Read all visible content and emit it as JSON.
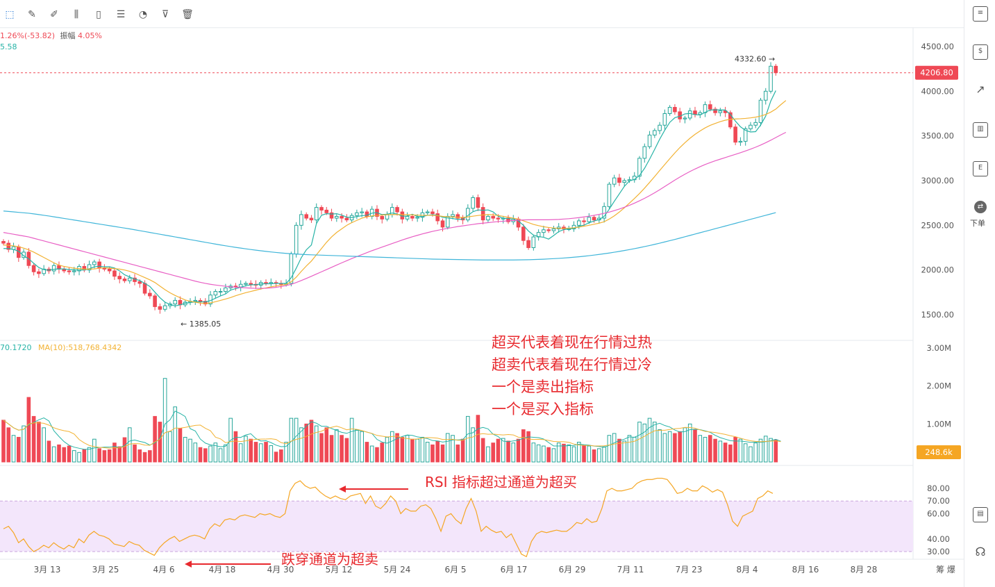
{
  "toolbar": {
    "tools": [
      {
        "name": "cursor-tool",
        "glyph": "⬚"
      },
      {
        "name": "pencil-tool",
        "glyph": "✎"
      },
      {
        "name": "brush-tool",
        "glyph": "✐"
      },
      {
        "name": "candle-tool",
        "glyph": "⫼"
      },
      {
        "name": "clip-tool",
        "glyph": "▯"
      },
      {
        "name": "note-tool",
        "glyph": "☰"
      },
      {
        "name": "magnet-tool",
        "glyph": "◔"
      },
      {
        "name": "filter-tool",
        "glyph": "⊽"
      },
      {
        "name": "trash-tool",
        "glyph": "🗑"
      }
    ]
  },
  "info": {
    "change": "1.26%(-53.82)",
    "amplitude_label": "振幅",
    "amplitude_value": "4.05%",
    "ma_line": "5.58",
    "vol_ma5": "70.1720",
    "vol_ma10": "MA(10):518,768.4342"
  },
  "price_axis": {
    "ticks": [
      "4500.00",
      "4000.00",
      "3500.00",
      "3000.00",
      "2500.00",
      "2000.00",
      "1500.00"
    ],
    "current_price": "4206.80",
    "high_label": "4332.60",
    "low_label": "1385.05"
  },
  "volume_axis": {
    "ticks": [
      "3.00M",
      "2.00M",
      "1.00M"
    ],
    "current": "248.6k"
  },
  "rsi_axis": {
    "ticks": [
      "80.00",
      "70.00",
      "60.00",
      "40.00",
      "30.00"
    ]
  },
  "x_axis": {
    "ticks": [
      "3月 13",
      "3月 25",
      "4月 6",
      "4月 18",
      "4月 30",
      "5月 12",
      "5月 24",
      "6月 5",
      "6月 17",
      "6月 29",
      "7月 11",
      "7月 23",
      "8月 4",
      "8月 16",
      "8月 28"
    ],
    "corner": "筹 爆"
  },
  "notes": {
    "line1": "超买代表着现在行情过热",
    "line2": "超卖代表着现在行情过冷",
    "line3": "一个是卖出指标",
    "line4": "一个是买入指标",
    "rsi_over": "RSI 指标超过通道为超买",
    "rsi_under": "跌穿通道为超卖"
  },
  "right_panel": {
    "order_label": "下单"
  },
  "colors": {
    "up": "#26a69a",
    "down": "#ef4955",
    "ma5": "#26b3a6",
    "ma10": "#f2b233",
    "ma20": "#e85ec4",
    "ma30": "#3fb5d9",
    "rsi": "#f5a623",
    "rsi_band": "#f3e6fb"
  },
  "chart_data": {
    "type": "candlestick",
    "price_range": [
      1300,
      4600
    ],
    "volume_range": [
      0,
      3000000
    ],
    "rsi_range": [
      20,
      95
    ],
    "rsi_band": [
      30,
      70
    ],
    "closes": [
      2300,
      2230,
      2260,
      2140,
      2200,
      2050,
      1980,
      1960,
      2010,
      1990,
      2050,
      2010,
      1990,
      1980,
      1990,
      2040,
      2000,
      2060,
      2090,
      2020,
      2010,
      1990,
      1930,
      1900,
      1880,
      1910,
      1870,
      1850,
      1740,
      1710,
      1590,
      1560,
      1600,
      1620,
      1660,
      1610,
      1640,
      1650,
      1660,
      1650,
      1620,
      1720,
      1760,
      1760,
      1800,
      1820,
      1810,
      1840,
      1850,
      1840,
      1830,
      1860,
      1850,
      1860,
      1850,
      1840,
      1850,
      2180,
      2500,
      2620,
      2580,
      2560,
      2700,
      2670,
      2640,
      2580,
      2600,
      2580,
      2560,
      2610,
      2640,
      2650,
      2600,
      2680,
      2600,
      2570,
      2620,
      2700,
      2650,
      2570,
      2600,
      2580,
      2590,
      2640,
      2650,
      2630,
      2550,
      2480,
      2600,
      2620,
      2580,
      2560,
      2690,
      2810,
      2700,
      2560,
      2600,
      2580,
      2570,
      2580,
      2540,
      2570,
      2480,
      2330,
      2250,
      2370,
      2420,
      2450,
      2440,
      2460,
      2480,
      2460,
      2460,
      2500,
      2550,
      2540,
      2590,
      2560,
      2580,
      2710,
      2960,
      3030,
      2980,
      3000,
      3010,
      3050,
      3250,
      3380,
      3510,
      3560,
      3620,
      3750,
      3820,
      3770,
      3690,
      3700,
      3780,
      3740,
      3760,
      3850,
      3800,
      3760,
      3780,
      3760,
      3600,
      3430,
      3440,
      3580,
      3620,
      3650,
      3900,
      4000,
      4280,
      4207
    ],
    "volume": [
      1100000,
      900000,
      700000,
      650000,
      950000,
      1700000,
      1200000,
      1050000,
      900000,
      550000,
      400000,
      450000,
      380000,
      420000,
      300000,
      250000,
      320000,
      380000,
      600000,
      350000,
      300000,
      320000,
      500000,
      400000,
      640000,
      900000,
      450000,
      320000,
      250000,
      300000,
      1200000,
      1050000,
      2200000,
      800000,
      1450000,
      880000,
      650000,
      600000,
      500000,
      380000,
      350000,
      420000,
      500000,
      350000,
      450000,
      1150000,
      800000,
      480000,
      680000,
      600000,
      520000,
      480000,
      520000,
      430000,
      260000,
      320000,
      520000,
      1150000,
      1150000,
      900000,
      1000000,
      1100000,
      950000,
      750000,
      900000,
      700000,
      850000,
      700000,
      620000,
      1150000,
      850000,
      800000,
      520000,
      420000,
      380000,
      500000,
      650000,
      800000,
      750000,
      650000,
      700000,
      600000,
      600000,
      650000,
      520000,
      450000,
      550000,
      450000,
      750000,
      700000,
      450000,
      600000,
      1200000,
      900000,
      1230000,
      620000,
      400000,
      500000,
      600000,
      620000,
      550000,
      500000,
      600000,
      850000,
      800000,
      500000,
      450000,
      420000,
      380000,
      350000,
      500000,
      470000,
      450000,
      400000,
      520000,
      430000,
      420000,
      320000,
      350000,
      400000,
      700000,
      750000,
      600000,
      550000,
      700000,
      650000,
      1050000,
      1000000,
      1150000,
      1050000,
      850000,
      750000,
      800000,
      750000,
      800000,
      900000,
      1000000,
      850000,
      700000,
      650000,
      700000,
      600000,
      550000,
      500000,
      450000,
      650000,
      600000,
      480000,
      400000,
      500000,
      600000,
      680000,
      620000,
      580000,
      248600
    ],
    "rsi": [
      48,
      50,
      45,
      37,
      40,
      34,
      30,
      32,
      35,
      33,
      37,
      34,
      32,
      35,
      33,
      40,
      37,
      43,
      46,
      43,
      42,
      40,
      36,
      35,
      34,
      38,
      36,
      35,
      31,
      29,
      27,
      33,
      37,
      40,
      42,
      38,
      40,
      42,
      43,
      42,
      40,
      48,
      52,
      50,
      55,
      56,
      55,
      58,
      59,
      58,
      57,
      60,
      59,
      60,
      58,
      57,
      60,
      78,
      84,
      86,
      82,
      80,
      81,
      77,
      74,
      72,
      74,
      72,
      71,
      74,
      75,
      76,
      68,
      74,
      66,
      64,
      68,
      74,
      70,
      60,
      64,
      62,
      62,
      66,
      67,
      64,
      56,
      46,
      58,
      60,
      55,
      52,
      64,
      72,
      62,
      46,
      50,
      47,
      45,
      46,
      41,
      44,
      36,
      28,
      26,
      38,
      44,
      46,
      45,
      46,
      47,
      46,
      46,
      49,
      53,
      52,
      56,
      53,
      54,
      64,
      78,
      80,
      78,
      78,
      79,
      80,
      84,
      86,
      87,
      87,
      88,
      88,
      87,
      82,
      76,
      77,
      80,
      78,
      78,
      82,
      80,
      77,
      79,
      77,
      67,
      54,
      50,
      58,
      60,
      62,
      72,
      74,
      78,
      76
    ],
    "ma5": [
      2240,
      2240,
      2230,
      2210,
      2160,
      2125,
      2075,
      2028,
      2004,
      1998,
      2008,
      2012,
      2012,
      2006,
      2002,
      2000,
      2000,
      2014,
      2036,
      2042,
      2036,
      2036,
      2022,
      1990,
      1946,
      1922,
      1898,
      1882,
      1850,
      1816,
      1752,
      1690,
      1640,
      1614,
      1598,
      1610,
      1628,
      1636,
      1644,
      1644,
      1644,
      1658,
      1684,
      1710,
      1732,
      1776,
      1792,
      1806,
      1824,
      1834,
      1836,
      1844,
      1846,
      1846,
      1850,
      1850,
      1850,
      1914,
      2020,
      2138,
      2226,
      2280,
      2520,
      2612,
      2630,
      2626,
      2630,
      2614,
      2592,
      2586,
      2598,
      2608,
      2612,
      2636,
      2642,
      2620,
      2624,
      2638,
      2626,
      2602,
      2604,
      2624,
      2598,
      2598,
      2612,
      2618,
      2612,
      2590,
      2582,
      2576,
      2566,
      2568,
      2610,
      2652,
      2672,
      2668,
      2672,
      2650,
      2602,
      2578,
      2576,
      2568,
      2550,
      2500,
      2436,
      2390,
      2374,
      2366,
      2346,
      2386,
      2430,
      2452,
      2460,
      2464,
      2490,
      2502,
      2528,
      2548,
      2564,
      2600,
      2680,
      2768,
      2852,
      2936,
      2996,
      3014,
      3058,
      3138,
      3240,
      3350,
      3464,
      3564,
      3652,
      3704,
      3720,
      3746,
      3752,
      3738,
      3734,
      3764,
      3790,
      3792,
      3792,
      3790,
      3740,
      3666,
      3602,
      3562,
      3544,
      3548,
      3622,
      3722,
      3890,
      4007
    ],
    "ma10": [
      2280,
      2275,
      2270,
      2260,
      2245,
      2225,
      2200,
      2170,
      2140,
      2110,
      2080,
      2055,
      2040,
      2030,
      2020,
      2015,
      2010,
      2010,
      2012,
      2020,
      2025,
      2020,
      2015,
      2010,
      2000,
      1985,
      1965,
      1940,
      1915,
      1890,
      1860,
      1820,
      1780,
      1745,
      1715,
      1690,
      1665,
      1650,
      1640,
      1630,
      1625,
      1632,
      1645,
      1660,
      1675,
      1692,
      1712,
      1730,
      1746,
      1760,
      1774,
      1788,
      1800,
      1812,
      1822,
      1830,
      1838,
      1868,
      1920,
      1985,
      2045,
      2100,
      2170,
      2240,
      2310,
      2370,
      2420,
      2460,
      2500,
      2530,
      2555,
      2580,
      2595,
      2605,
      2612,
      2615,
      2618,
      2620,
      2620,
      2620,
      2618,
      2616,
      2614,
      2612,
      2612,
      2612,
      2608,
      2600,
      2596,
      2594,
      2590,
      2588,
      2594,
      2602,
      2610,
      2616,
      2620,
      2616,
      2610,
      2600,
      2590,
      2580,
      2570,
      2550,
      2530,
      2510,
      2496,
      2484,
      2476,
      2470,
      2466,
      2466,
      2468,
      2472,
      2480,
      2490,
      2500,
      2512,
      2524,
      2540,
      2570,
      2606,
      2648,
      2696,
      2748,
      2800,
      2856,
      2916,
      2980,
      3046,
      3114,
      3180,
      3246,
      3310,
      3370,
      3424,
      3474,
      3518,
      3556,
      3590,
      3618,
      3640,
      3660,
      3676,
      3686,
      3690,
      3692,
      3696,
      3702,
      3710,
      3722,
      3740,
      3766,
      3800,
      3850,
      3896
    ],
    "ma20": [
      2420,
      2410,
      2400,
      2390,
      2380,
      2370,
      2355,
      2340,
      2325,
      2310,
      2295,
      2280,
      2265,
      2250,
      2235,
      2220,
      2205,
      2190,
      2175,
      2160,
      2145,
      2130,
      2115,
      2100,
      2085,
      2070,
      2055,
      2040,
      2025,
      2010,
      1995,
      1980,
      1965,
      1950,
      1935,
      1920,
      1905,
      1890,
      1875,
      1862,
      1850,
      1840,
      1832,
      1825,
      1818,
      1812,
      1808,
      1804,
      1800,
      1797,
      1795,
      1795,
      1796,
      1800,
      1806,
      1815,
      1826,
      1840,
      1860,
      1882,
      1906,
      1930,
      1955,
      1980,
      2005,
      2030,
      2055,
      2080,
      2104,
      2128,
      2150,
      2172,
      2194,
      2216,
      2236,
      2256,
      2276,
      2296,
      2316,
      2336,
      2354,
      2372,
      2388,
      2404,
      2418,
      2432,
      2444,
      2456,
      2466,
      2476,
      2486,
      2494,
      2502,
      2510,
      2518,
      2524,
      2530,
      2536,
      2542,
      2546,
      2550,
      2554,
      2558,
      2560,
      2562,
      2562,
      2562,
      2562,
      2562,
      2564,
      2566,
      2570,
      2574,
      2580,
      2586,
      2594,
      2602,
      2612,
      2622,
      2634,
      2648,
      2664,
      2682,
      2702,
      2724,
      2748,
      2774,
      2802,
      2832,
      2864,
      2898,
      2934,
      2970,
      3006,
      3040,
      3072,
      3102,
      3130,
      3156,
      3180,
      3202,
      3222,
      3240,
      3258,
      3276,
      3294,
      3312,
      3332,
      3352,
      3374,
      3398,
      3424,
      3452,
      3482,
      3512,
      3540
    ],
    "ma30": [
      2660,
      2655,
      2650,
      2645,
      2640,
      2635,
      2628,
      2620,
      2612,
      2604,
      2595,
      2586,
      2577,
      2568,
      2559,
      2550,
      2541,
      2532,
      2523,
      2514,
      2505,
      2496,
      2487,
      2478,
      2469,
      2460,
      2450,
      2440,
      2430,
      2420,
      2410,
      2400,
      2390,
      2380,
      2370,
      2360,
      2350,
      2340,
      2330,
      2320,
      2310,
      2300,
      2290,
      2280,
      2271,
      2262,
      2253,
      2245,
      2237,
      2229,
      2222,
      2215,
      2208,
      2202,
      2196,
      2191,
      2186,
      2182,
      2178,
      2175,
      2172,
      2170,
      2168,
      2166,
      2164,
      2162,
      2160,
      2158,
      2156,
      2154,
      2152,
      2150,
      2148,
      2146,
      2144,
      2142,
      2140,
      2138,
      2136,
      2134,
      2132,
      2130,
      2128,
      2126,
      2124,
      2122,
      2121,
      2120,
      2119,
      2118,
      2117,
      2116,
      2115,
      2114,
      2113,
      2112,
      2112,
      2112,
      2112,
      2112,
      2112,
      2112,
      2113,
      2114,
      2115,
      2117,
      2119,
      2121,
      2124,
      2127,
      2130,
      2134,
      2138,
      2143,
      2148,
      2154,
      2160,
      2167,
      2174,
      2182,
      2190,
      2199,
      2208,
      2218,
      2228,
      2239,
      2250,
      2262,
      2274,
      2287,
      2300,
      2314,
      2328,
      2342,
      2357,
      2372,
      2387,
      2402,
      2417,
      2432,
      2447,
      2462,
      2477,
      2492,
      2507,
      2522,
      2537,
      2552,
      2567,
      2582,
      2597,
      2612,
      2627,
      2642
    ]
  }
}
